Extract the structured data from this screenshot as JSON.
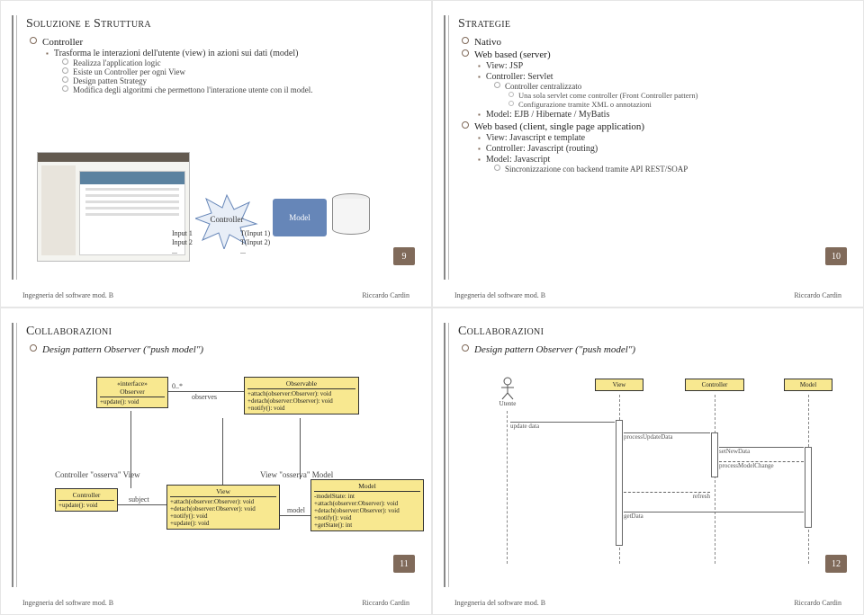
{
  "footer": {
    "left": "Ingegneria del software mod. B",
    "right": "Riccardo Cardin"
  },
  "slide1": {
    "title": "Soluzione e Struttura",
    "page": "9",
    "items": [
      {
        "t": "Controller",
        "l": 1
      },
      {
        "t": "Trasforma le interazioni dell'utente (view) in azioni sui dati (model)",
        "l": 2
      },
      {
        "t": "Realizza l'application logic",
        "l": 3
      },
      {
        "t": "Esiste un Controller per ogni View",
        "l": 3
      },
      {
        "t": "Design patten Strategy",
        "l": 3
      },
      {
        "t": "Modifica degli algoritmi che permettono l'interazione utente con il model.",
        "l": 3
      }
    ],
    "diagram": {
      "controller": "Controller",
      "model": "Model",
      "inputs_left": [
        "Input 1",
        "Input 2",
        "..."
      ],
      "inputs_right": [
        "T(Input 1)",
        "T(Input 2)",
        "..."
      ]
    }
  },
  "slide2": {
    "title": "Strategie",
    "page": "10",
    "items": [
      {
        "t": "Nativo",
        "l": 1
      },
      {
        "t": "Web based (server)",
        "l": 1
      },
      {
        "t": "View: JSP",
        "l": 2
      },
      {
        "t": "Controller: Servlet",
        "l": 2
      },
      {
        "t": "Controller centralizzato",
        "l": 3
      },
      {
        "t": "Una sola servlet come controller (Front Controller pattern)",
        "l": 4
      },
      {
        "t": "Configurazione tramite XML o annotazioni",
        "l": 4
      },
      {
        "t": "Model: EJB / Hibernate / MyBatis",
        "l": 2
      },
      {
        "t": "Web based (client, single page application)",
        "l": 1
      },
      {
        "t": "View: Javascript e template",
        "l": 2
      },
      {
        "t": "Controller: Javascript (routing)",
        "l": 2
      },
      {
        "t": "Model: Javascript",
        "l": 2
      },
      {
        "t": "Sincronizzazione con backend tramite API REST/SOAP",
        "l": 3
      }
    ]
  },
  "slide3": {
    "title": "Collaborazioni",
    "page": "11",
    "subtitle": "Design pattern Observer (\"push model\")",
    "boxes": {
      "observer": {
        "hdr": "«interface»\nObserver",
        "body": "+update(): void"
      },
      "observable": {
        "hdr": "Observable",
        "body": "+attach(observer:Observer): void\n+detach(observer:Observer): void\n+notify(): void"
      },
      "controller": {
        "hdr": "Controller",
        "body": "+update(): void"
      },
      "view": {
        "hdr": "View",
        "body": "+attach(observer:Observer): void\n+detach(observer:Observer): void\n+notify(): void\n+update(): void"
      },
      "model": {
        "hdr": "Model",
        "body": "-modelState: int\n+attach(observer:Observer): void\n+detach(observer:Observer): void\n+notify(): void\n+getState(): int"
      }
    },
    "notes": {
      "obs_rel": "observes",
      "card": "0..*",
      "subject": "subject",
      "model_lbl": "model",
      "n1": "Controller \"osserva\" View",
      "n2": "View \"osserva\" Model"
    }
  },
  "slide4": {
    "title": "Collaborazioni",
    "page": "12",
    "subtitle": "Design pattern Observer (\"push model\")",
    "actors": {
      "user": "Utente",
      "view": "View",
      "controller": "Controller",
      "model": "Model"
    },
    "messages": [
      "update data",
      "processUpdateData",
      "setNewData",
      "processModelChange",
      "refresh",
      "getData"
    ]
  },
  "colors": {
    "accent": "#806a5a",
    "uml_fill": "#f8e890",
    "controller_blue": "#6686b8"
  }
}
